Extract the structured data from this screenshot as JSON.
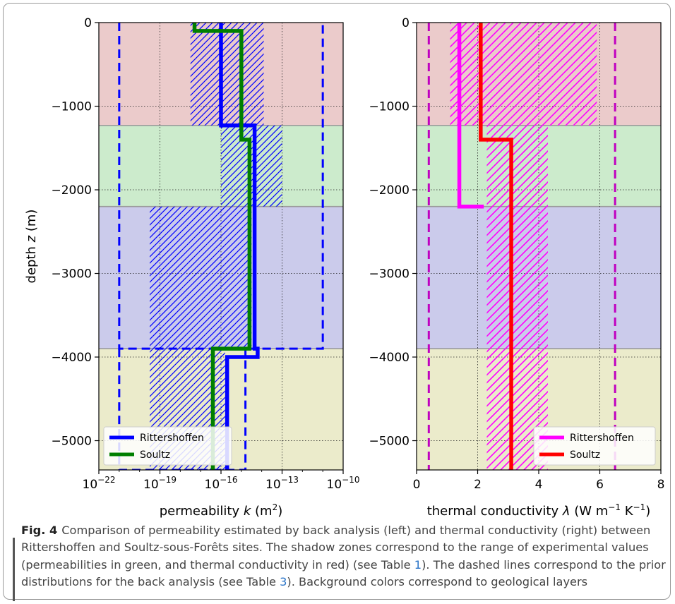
{
  "layers": [
    {
      "name": "layer-1",
      "top": 0,
      "bottom": -1230,
      "color": "#ebcbcb"
    },
    {
      "name": "layer-2",
      "top": -1230,
      "bottom": -2200,
      "color": "#ccebcc"
    },
    {
      "name": "layer-3",
      "top": -2200,
      "bottom": -3900,
      "color": "#cbcbeb"
    },
    {
      "name": "layer-4",
      "top": -3900,
      "bottom": -5350,
      "color": "#ebebcb"
    }
  ],
  "chart_data": [
    {
      "type": "line",
      "ylabel": "depth z (m)",
      "xlabel": "permeability k (m²)",
      "x_scale": "log",
      "xlim_exponents": [
        -22,
        -10
      ],
      "ylim": [
        -5350,
        0
      ],
      "x_ticks": [
        "10−22",
        "10−19",
        "10−16",
        "10−13",
        "10−10"
      ],
      "y_ticks": [
        "0",
        "−1000",
        "−2000",
        "−3000",
        "−4000",
        "−5000"
      ],
      "grid": true,
      "legend_position": "bottom-left",
      "series": [
        {
          "name": "Rittershoffen",
          "color": "#0000ff",
          "log_k": [
            -16,
            -16,
            -14.35,
            -14.35,
            -14.2,
            -14.2,
            -15.7,
            -15.7
          ],
          "depth": [
            0,
            -1230,
            -1230,
            -3900,
            -3900,
            -4000,
            -4000,
            -5350
          ]
        },
        {
          "name": "Soultz",
          "color": "#007f00",
          "log_k": [
            -17.3,
            -17.3,
            -15.0,
            -15.0,
            -14.6,
            -14.6,
            -16.4,
            -16.4
          ],
          "depth": [
            0,
            -100,
            -100,
            -1400,
            -1400,
            -3900,
            -3900,
            -5350
          ]
        }
      ],
      "experimental_ranges": [
        {
          "log_k_min": -17.5,
          "log_k_max": -13.9,
          "depth_top": 0,
          "depth_bottom": -1230
        },
        {
          "log_k_min": -16.0,
          "log_k_max": -13.0,
          "depth_top": -1230,
          "depth_bottom": -2200
        },
        {
          "log_k_min": -19.5,
          "log_k_max": -14.5,
          "depth_top": -2200,
          "depth_bottom": -3900
        },
        {
          "log_k_min": -19.5,
          "log_k_max": -15.8,
          "depth_top": -3900,
          "depth_bottom": -5350
        }
      ],
      "prior_bounds": [
        {
          "log_k": [
            -21,
            -21,
            -11,
            -11
          ],
          "depth": [
            0,
            -3900,
            -3900,
            0
          ]
        },
        {
          "log_k": [
            -21,
            -21,
            -14.8,
            -14.8
          ],
          "depth": [
            -3900,
            -5350,
            -5350,
            -3900
          ]
        }
      ]
    },
    {
      "type": "line",
      "xlabel": "thermal conductivity λ (W m−1 K−1)",
      "xlim": [
        0,
        8
      ],
      "ylim": [
        -5350,
        0
      ],
      "x_ticks": [
        "0",
        "2",
        "4",
        "6",
        "8"
      ],
      "y_ticks": [
        "0",
        "−1000",
        "−2000",
        "−3000",
        "−4000",
        "−5000"
      ],
      "grid": true,
      "legend_position": "bottom-right",
      "series": [
        {
          "name": "Rittershoffen",
          "color": "#ff00ff",
          "lambda": [
            1.4,
            1.4,
            1.4,
            2.2
          ],
          "depth": [
            0,
            -1230,
            -2200,
            -2200
          ]
        },
        {
          "name": "Soultz",
          "color": "#ff0000",
          "lambda": [
            2.1,
            2.1,
            3.1,
            3.1
          ],
          "depth": [
            0,
            -1400,
            -1400,
            -5350
          ]
        }
      ],
      "experimental_ranges": [
        {
          "lambda_min": 1.1,
          "lambda_max": 5.9,
          "depth_top": 0,
          "depth_bottom": -1230
        },
        {
          "lambda_min": 2.3,
          "lambda_max": 4.3,
          "depth_top": -1230,
          "depth_bottom": -5350
        }
      ],
      "prior_bounds": [
        0.4,
        6.5
      ]
    }
  ],
  "caption": {
    "label": "Fig. 4",
    "text_1": "Comparison of permeability estimated by back analysis (left) and thermal conductivity (right) between Rittershoffen and Soultz-sous-Forêts sites. The shadow zones correspond to the range of experimental values (permeabilities in green, and thermal conductivity in red) (see Table ",
    "ref_1": "1",
    "text_2": "). The dashed lines correspond to the prior distributions for the back analysis (see Table ",
    "ref_2": "3",
    "text_3": "). Background colors correspond to geological layers"
  }
}
